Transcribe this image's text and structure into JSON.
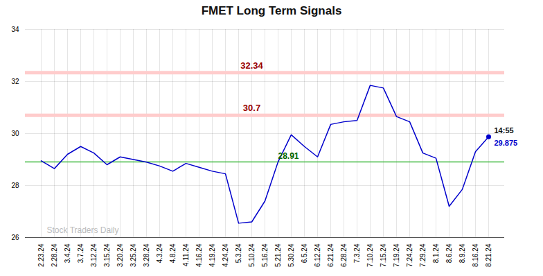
{
  "chart_data": {
    "type": "line",
    "title": "FMET Long Term Signals",
    "categories": [
      "2.23.24",
      "2.28.24",
      "3.4.24",
      "3.7.24",
      "3.12.24",
      "3.15.24",
      "3.20.24",
      "3.25.24",
      "3.28.24",
      "4.3.24",
      "4.8.24",
      "4.11.24",
      "4.16.24",
      "4.19.24",
      "4.24.24",
      "5.3.24",
      "5.10.24",
      "5.16.24",
      "5.21.24",
      "5.30.24",
      "6.5.24",
      "6.12.24",
      "6.21.24",
      "6.28.24",
      "7.3.24",
      "7.10.24",
      "7.15.24",
      "7.19.24",
      "7.24.24",
      "7.29.24",
      "8.1.24",
      "8.6.24",
      "8.9.24",
      "8.16.24",
      "8.21.24"
    ],
    "values": [
      28.95,
      28.65,
      29.2,
      29.5,
      29.25,
      28.8,
      29.1,
      29.0,
      28.9,
      28.75,
      28.55,
      28.85,
      28.7,
      28.55,
      28.45,
      26.55,
      26.6,
      27.4,
      28.91,
      29.95,
      29.5,
      29.1,
      30.35,
      30.45,
      30.5,
      31.85,
      31.75,
      30.65,
      30.45,
      29.25,
      29.05,
      27.2,
      27.85,
      29.3,
      29.875
    ],
    "color": "#0000cc",
    "ylim": [
      26,
      34
    ],
    "yticks": [
      26,
      28,
      30,
      32,
      34
    ],
    "grid": true,
    "reference_lines": [
      {
        "value": 32.34,
        "label": "32.34",
        "color": "#ffcccc",
        "label_color": "#990000",
        "line_style": "band"
      },
      {
        "value": 30.7,
        "label": "30.7",
        "color": "#ffcccc",
        "label_color": "#990000",
        "line_style": "band"
      },
      {
        "value": 28.91,
        "label": "28.91",
        "color": "#44bb44",
        "label_color": "#006600",
        "line_style": "solid"
      }
    ],
    "last_point": {
      "time_label": "14:55",
      "time_color": "#111111",
      "value": 29.875,
      "label": "29.875",
      "color": "#0000cc"
    },
    "watermark": {
      "text": "Stock Traders Daily",
      "color": "#bbbbbb"
    }
  }
}
